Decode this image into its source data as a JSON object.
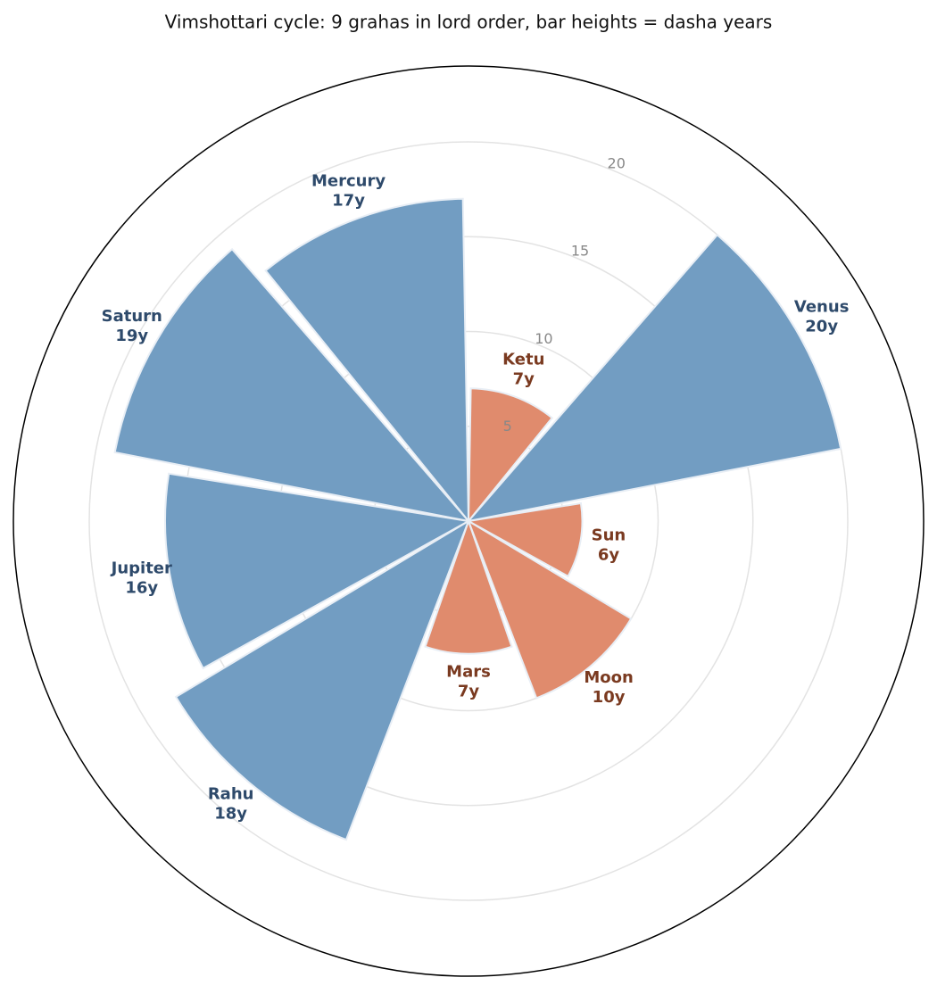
{
  "chart_data": {
    "type": "polar-bar",
    "title": "Vimshottari cycle: 9 grahas in lord order, bar heights = dasha years",
    "categories": [
      "Ketu",
      "Venus",
      "Sun",
      "Moon",
      "Mars",
      "Rahu",
      "Jupiter",
      "Saturn",
      "Mercury"
    ],
    "values": [
      7,
      20,
      6,
      10,
      7,
      18,
      16,
      19,
      17
    ],
    "value_labels": [
      "7y",
      "20y",
      "6y",
      "10y",
      "7y",
      "18y",
      "16y",
      "19y",
      "17y"
    ],
    "colors": [
      "#e08b6d",
      "#729dc2",
      "#e08b6d",
      "#e08b6d",
      "#e08b6d",
      "#729dc2",
      "#729dc2",
      "#729dc2",
      "#729dc2"
    ],
    "label_colors": [
      "#7a3a20",
      "#2e4a6b",
      "#7a3a20",
      "#7a3a20",
      "#7a3a20",
      "#2e4a6b",
      "#2e4a6b",
      "#2e4a6b",
      "#2e4a6b"
    ],
    "ylim": [
      0,
      24
    ],
    "yticks": [
      5,
      10,
      15,
      20
    ],
    "grid": true
  }
}
